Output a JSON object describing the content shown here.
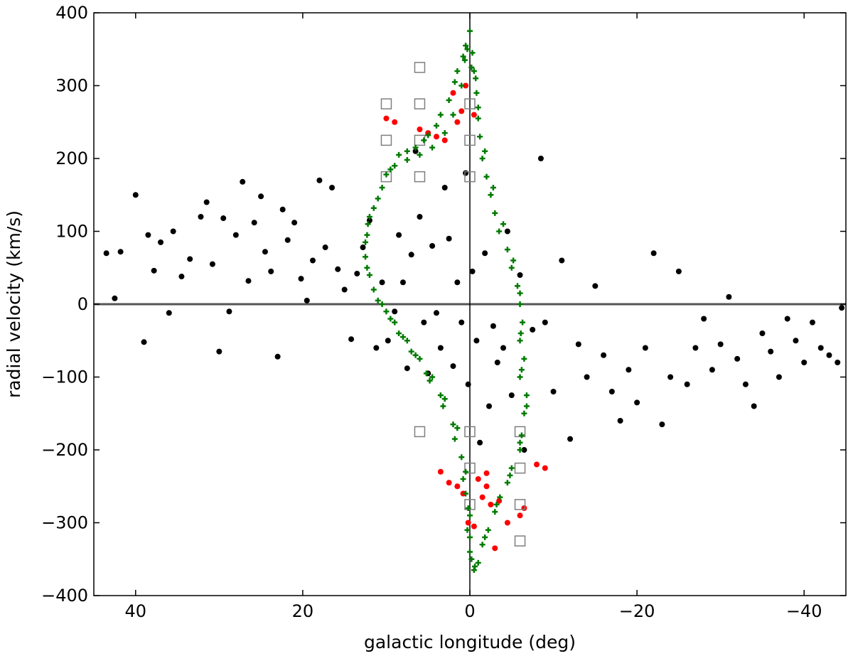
{
  "chart_data": {
    "type": "scatter",
    "title": "",
    "xlabel": "galactic longitude (deg)",
    "ylabel": "radial velocity (km/s)",
    "xlim": [
      45,
      -45
    ],
    "ylim": [
      -400,
      400
    ],
    "x_reversed": true,
    "grid": false,
    "legend": "none",
    "x_ticks": [
      40,
      20,
      0,
      -20,
      -40
    ],
    "x_tick_labels": [
      "40",
      "20",
      "0",
      "−20",
      "−40"
    ],
    "y_ticks": [
      400,
      300,
      200,
      100,
      0,
      -100,
      -200,
      -300,
      -400
    ],
    "y_tick_labels": [
      "400",
      "300",
      "200",
      "100",
      "0",
      "−100",
      "−200",
      "−300",
      "−400"
    ],
    "reference_lines": {
      "x": 0,
      "y": 0
    },
    "colors": {
      "black": "#000000",
      "red": "#ff0000",
      "green": "#007a00",
      "square": "#7f7f7f",
      "axis": "#555555"
    },
    "series": [
      {
        "marker": "circle",
        "color": "#000000",
        "points": [
          [
            43.5,
            70
          ],
          [
            42.5,
            8
          ],
          [
            41.8,
            72
          ],
          [
            40,
            150
          ],
          [
            39,
            -52
          ],
          [
            38.5,
            95
          ],
          [
            37.8,
            46
          ],
          [
            37,
            85
          ],
          [
            36,
            -12
          ],
          [
            35.5,
            100
          ],
          [
            34.5,
            38
          ],
          [
            33.5,
            62
          ],
          [
            32.2,
            120
          ],
          [
            31.5,
            140
          ],
          [
            30.8,
            55
          ],
          [
            30,
            -65
          ],
          [
            29.5,
            118
          ],
          [
            28.8,
            -10
          ],
          [
            28,
            95
          ],
          [
            27.2,
            168
          ],
          [
            26.5,
            32
          ],
          [
            25.8,
            112
          ],
          [
            25,
            148
          ],
          [
            24.5,
            72
          ],
          [
            23.8,
            45
          ],
          [
            23,
            -72
          ],
          [
            22.4,
            130
          ],
          [
            21.8,
            88
          ],
          [
            21,
            112
          ],
          [
            20.2,
            35
          ],
          [
            19.5,
            5
          ],
          [
            18.8,
            60
          ],
          [
            18,
            170
          ],
          [
            17.3,
            78
          ],
          [
            16.5,
            160
          ],
          [
            15.8,
            48
          ],
          [
            15,
            20
          ],
          [
            14.2,
            -48
          ],
          [
            13.5,
            42
          ],
          [
            12.8,
            78
          ],
          [
            12,
            115
          ],
          [
            11.2,
            -60
          ],
          [
            10.5,
            30
          ],
          [
            9.8,
            -50
          ],
          [
            9,
            -10
          ],
          [
            8.5,
            95
          ],
          [
            8,
            30
          ],
          [
            7.5,
            -88
          ],
          [
            7,
            68
          ],
          [
            6.5,
            210
          ],
          [
            6,
            120
          ],
          [
            5.5,
            -25
          ],
          [
            5,
            -95
          ],
          [
            4.5,
            80
          ],
          [
            4,
            -12
          ],
          [
            3.5,
            -60
          ],
          [
            3,
            160
          ],
          [
            2.5,
            90
          ],
          [
            2,
            -85
          ],
          [
            1.5,
            30
          ],
          [
            1,
            -25
          ],
          [
            0.5,
            180
          ],
          [
            0.2,
            -110
          ],
          [
            -0.3,
            45
          ],
          [
            -0.8,
            -50
          ],
          [
            -1.2,
            -190
          ],
          [
            -1.8,
            70
          ],
          [
            -2.3,
            -140
          ],
          [
            -2.8,
            -30
          ],
          [
            -3.3,
            -80
          ],
          [
            -4,
            -60
          ],
          [
            -4.5,
            100
          ],
          [
            -5,
            -125
          ],
          [
            -6,
            40
          ],
          [
            -6.5,
            -200
          ],
          [
            -7.5,
            -35
          ],
          [
            -8.5,
            200
          ],
          [
            -9,
            -25
          ],
          [
            -10,
            -120
          ],
          [
            -11,
            60
          ],
          [
            -12,
            -185
          ],
          [
            -13,
            -55
          ],
          [
            -14,
            -100
          ],
          [
            -15,
            25
          ],
          [
            -16,
            -70
          ],
          [
            -17,
            -120
          ],
          [
            -18,
            -160
          ],
          [
            -19,
            -90
          ],
          [
            -20,
            -135
          ],
          [
            -21,
            -60
          ],
          [
            -22,
            70
          ],
          [
            -23,
            -165
          ],
          [
            -24,
            -100
          ],
          [
            -25,
            45
          ],
          [
            -26,
            -110
          ],
          [
            -27,
            -60
          ],
          [
            -28,
            -20
          ],
          [
            -29,
            -90
          ],
          [
            -30,
            -55
          ],
          [
            -31,
            10
          ],
          [
            -32,
            -75
          ],
          [
            -33,
            -110
          ],
          [
            -34,
            -140
          ],
          [
            -35,
            -40
          ],
          [
            -36,
            -65
          ],
          [
            -37,
            -100
          ],
          [
            -38,
            -20
          ],
          [
            -39,
            -50
          ],
          [
            -40,
            -80
          ],
          [
            -41,
            -25
          ],
          [
            -42,
            -60
          ],
          [
            -43,
            -70
          ],
          [
            -44,
            -80
          ],
          [
            -44.5,
            -5
          ]
        ]
      },
      {
        "marker": "circle",
        "color": "#ff0000",
        "points": [
          [
            10,
            255
          ],
          [
            9,
            250
          ],
          [
            6,
            240
          ],
          [
            5,
            235
          ],
          [
            4,
            230
          ],
          [
            3,
            225
          ],
          [
            2,
            290
          ],
          [
            1.5,
            250
          ],
          [
            1,
            265
          ],
          [
            0.5,
            300
          ],
          [
            -0.5,
            260
          ],
          [
            3.5,
            -230
          ],
          [
            2.5,
            -245
          ],
          [
            1.5,
            -250
          ],
          [
            0.8,
            -260
          ],
          [
            0.2,
            -300
          ],
          [
            -0.5,
            -305
          ],
          [
            -1,
            -240
          ],
          [
            -1.5,
            -265
          ],
          [
            -2,
            -250
          ],
          [
            -2.5,
            -275
          ],
          [
            -3,
            -335
          ],
          [
            -3.5,
            -270
          ],
          [
            -4.5,
            -300
          ],
          [
            -6,
            -290
          ],
          [
            -6.5,
            -280
          ],
          [
            -8,
            -220
          ],
          [
            -9,
            -225
          ],
          [
            -2,
            -232
          ]
        ]
      },
      {
        "marker": "square",
        "color": "#7f7f7f",
        "points": [
          [
            6,
            325
          ],
          [
            10,
            275
          ],
          [
            6,
            275
          ],
          [
            0,
            275
          ],
          [
            10,
            225
          ],
          [
            6,
            225
          ],
          [
            0,
            225
          ],
          [
            10,
            175
          ],
          [
            6,
            175
          ],
          [
            0,
            175
          ],
          [
            6,
            -175
          ],
          [
            0,
            -175
          ],
          [
            -6,
            -175
          ],
          [
            0,
            -225
          ],
          [
            -6,
            -225
          ],
          [
            0,
            -275
          ],
          [
            -6,
            -275
          ],
          [
            -6,
            -325
          ]
        ]
      },
      {
        "marker": "plus",
        "color": "#007a00",
        "points": [
          [
            0,
            375
          ],
          [
            0.3,
            350
          ],
          [
            0.6,
            335
          ],
          [
            1,
            300
          ],
          [
            2,
            260
          ],
          [
            3,
            235
          ],
          [
            4.5,
            215
          ],
          [
            6,
            205
          ],
          [
            7.5,
            198
          ],
          [
            9,
            190
          ],
          [
            10.5,
            160
          ],
          [
            12,
            120
          ],
          [
            12.5,
            85
          ],
          [
            12,
            40
          ],
          [
            10.5,
            0
          ],
          [
            9,
            -25
          ],
          [
            7.5,
            -50
          ],
          [
            6,
            -75
          ],
          [
            4.5,
            -100
          ],
          [
            3,
            -130
          ],
          [
            1.5,
            -170
          ],
          [
            0.5,
            -230
          ],
          [
            0,
            -290
          ],
          [
            0,
            -340
          ],
          [
            -0.5,
            -365
          ],
          [
            -1.5,
            -330
          ],
          [
            -3,
            -285
          ],
          [
            -4.5,
            -245
          ],
          [
            -6,
            -200
          ],
          [
            -6.5,
            -150
          ],
          [
            -6,
            -100
          ],
          [
            -6,
            -50
          ],
          [
            -6,
            0
          ],
          [
            -5,
            50
          ],
          [
            -3.5,
            100
          ],
          [
            -2.5,
            150
          ],
          [
            -1.5,
            200
          ],
          [
            -1,
            255
          ],
          [
            -0.7,
            310
          ],
          [
            -0.3,
            345
          ],
          [
            0.5,
            355
          ],
          [
            1.5,
            320
          ],
          [
            2.5,
            280
          ],
          [
            4,
            245
          ],
          [
            5.5,
            225
          ],
          [
            7.5,
            210
          ],
          [
            9.5,
            185
          ],
          [
            11,
            145
          ],
          [
            12.2,
            110
          ],
          [
            12.5,
            65
          ],
          [
            11.5,
            20
          ],
          [
            10,
            -10
          ],
          [
            8.5,
            -40
          ],
          [
            7,
            -65
          ],
          [
            5.2,
            -95
          ],
          [
            3.5,
            -125
          ],
          [
            2,
            -165
          ],
          [
            1,
            -210
          ],
          [
            0.5,
            -260
          ],
          [
            0.3,
            -310
          ],
          [
            -0.2,
            -350
          ],
          [
            -1,
            -355
          ],
          [
            -2.2,
            -310
          ],
          [
            -3.6,
            -265
          ],
          [
            -5,
            -225
          ],
          [
            -6.2,
            -180
          ],
          [
            -6.8,
            -125
          ],
          [
            -6.5,
            -75
          ],
          [
            -6.3,
            -25
          ],
          [
            -5.7,
            25
          ],
          [
            -4.5,
            75
          ],
          [
            -3,
            125
          ],
          [
            -2,
            175
          ],
          [
            -1.2,
            230
          ],
          [
            -0.8,
            290
          ],
          [
            -0.2,
            325
          ],
          [
            0.8,
            340
          ],
          [
            1.8,
            305
          ],
          [
            3.5,
            260
          ],
          [
            5,
            232
          ],
          [
            6.5,
            215
          ],
          [
            8.5,
            205
          ],
          [
            10,
            178
          ],
          [
            11.5,
            132
          ],
          [
            12.3,
            95
          ],
          [
            12.3,
            50
          ],
          [
            11,
            5
          ],
          [
            9.5,
            -20
          ],
          [
            8,
            -45
          ],
          [
            6.5,
            -70
          ],
          [
            4.8,
            -105
          ],
          [
            3.2,
            -140
          ],
          [
            1.8,
            -185
          ],
          [
            0.8,
            -240
          ],
          [
            0.2,
            -280
          ],
          [
            0,
            -320
          ],
          [
            -0.6,
            -360
          ],
          [
            -1.8,
            -320
          ],
          [
            -3.2,
            -275
          ],
          [
            -4.8,
            -235
          ],
          [
            -6,
            -190
          ],
          [
            -6.8,
            -140
          ],
          [
            -6.2,
            -90
          ],
          [
            -6.1,
            -40
          ],
          [
            -6,
            15
          ],
          [
            -5.2,
            60
          ],
          [
            -4,
            110
          ],
          [
            -2.8,
            160
          ],
          [
            -1.8,
            210
          ],
          [
            -1,
            270
          ],
          [
            -0.5,
            320
          ]
        ]
      }
    ]
  }
}
